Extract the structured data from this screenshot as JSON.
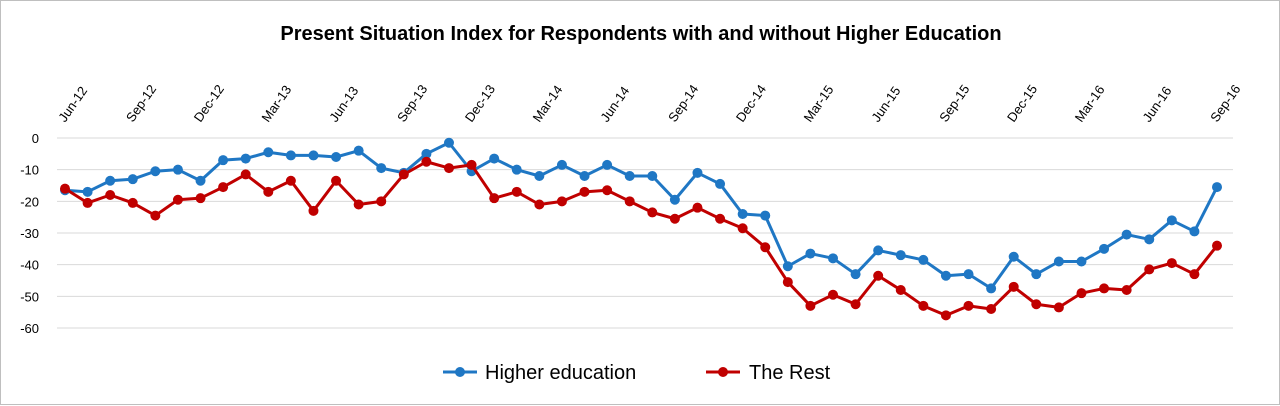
{
  "chart_data": {
    "type": "line",
    "title": "Present Situation Index for Respondents with and without Higher Education",
    "xlabel": "",
    "ylabel": "",
    "ylim": [
      -60,
      0
    ],
    "yticks": [
      0,
      -10,
      -20,
      -30,
      -40,
      -50,
      -60
    ],
    "grid": "horizontal",
    "legend_position": "bottom",
    "x": [
      "Jun-12",
      "Jul-12",
      "Aug-12",
      "Sep-12",
      "Oct-12",
      "Nov-12",
      "Dec-12",
      "Jan-13",
      "Feb-13",
      "Mar-13",
      "Apr-13",
      "May-13",
      "Jun-13",
      "Jul-13",
      "Aug-13",
      "Sep-13",
      "Oct-13",
      "Nov-13",
      "Dec-13",
      "Jan-14",
      "Feb-14",
      "Mar-14",
      "Apr-14",
      "May-14",
      "Jun-14",
      "Jul-14",
      "Aug-14",
      "Sep-14",
      "Oct-14",
      "Nov-14",
      "Dec-14",
      "Jan-15",
      "Feb-15",
      "Mar-15",
      "Apr-15",
      "May-15",
      "Jun-15",
      "Jul-15",
      "Aug-15",
      "Sep-15",
      "Oct-15",
      "Nov-15",
      "Dec-15",
      "Jan-16",
      "Feb-16",
      "Mar-16",
      "Apr-16",
      "May-16",
      "Jun-16",
      "Jul-16",
      "Aug-16",
      "Sep-16"
    ],
    "x_tick_labels": [
      "Jun-12",
      "Sep-12",
      "Dec-12",
      "Mar-13",
      "Jun-13",
      "Sep-13",
      "Dec-13",
      "Mar-14",
      "Jun-14",
      "Sep-14",
      "Dec-14",
      "Mar-15",
      "Jun-15",
      "Sep-15",
      "Dec-15",
      "Mar-16",
      "Jun-16",
      "Sep-16"
    ],
    "series": [
      {
        "name": "Higher education",
        "color": "#1f77c4",
        "values": [
          -16.5,
          -17,
          -13.5,
          -13,
          -10.5,
          -10,
          -13.5,
          -7,
          -6.5,
          -4.5,
          -5.5,
          -5.5,
          -6,
          -4,
          -9.5,
          -11,
          -5,
          -1.5,
          -10.5,
          -6.5,
          -10,
          -12,
          -8.5,
          -12,
          -8.5,
          -12,
          -12,
          -19.5,
          -11,
          -14.5,
          -24,
          -24.5,
          -40.5,
          -36.5,
          -38,
          -43,
          -35.5,
          -37,
          -38.5,
          -43.5,
          -43,
          -47.5,
          -37.5,
          -43,
          -39,
          -39,
          -35,
          -30.5,
          -32,
          -26,
          -29.5,
          -15.5
        ]
      },
      {
        "name": "The Rest",
        "color": "#c00000",
        "values": [
          -16,
          -20.5,
          -18,
          -20.5,
          -24.5,
          -19.5,
          -19,
          -15.5,
          -11.5,
          -17,
          -13.5,
          -23,
          -13.5,
          -21,
          -20,
          -11.5,
          -7.5,
          -9.5,
          -8.5,
          -19,
          -17,
          -21,
          -20,
          -17,
          -16.5,
          -20,
          -23.5,
          -25.5,
          -22,
          -25.5,
          -28.5,
          -34.5,
          -45.5,
          -53,
          -49.5,
          -52.5,
          -43.5,
          -48,
          -53,
          -56,
          -53,
          -54,
          -47,
          -52.5,
          -53.5,
          -49,
          -47.5,
          -48,
          -41.5,
          -39.5,
          -43,
          -34
        ]
      }
    ]
  }
}
